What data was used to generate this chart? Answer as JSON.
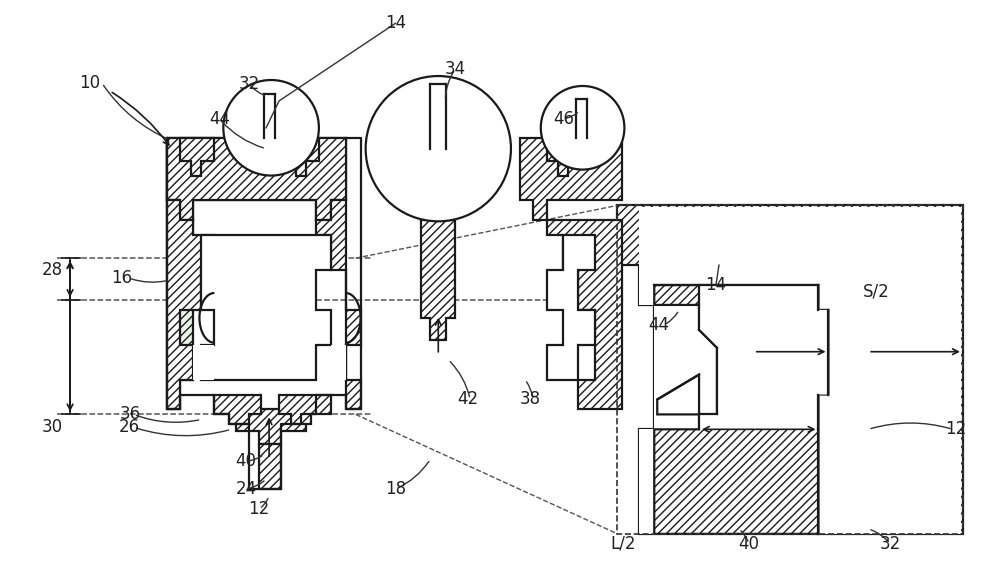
{
  "bg_color": "#ffffff",
  "line_color": "#1a1a1a",
  "label_color": "#222222",
  "fig_width": 10.0,
  "fig_height": 5.82,
  "hatch": "////",
  "hatch_lw": 0.5
}
